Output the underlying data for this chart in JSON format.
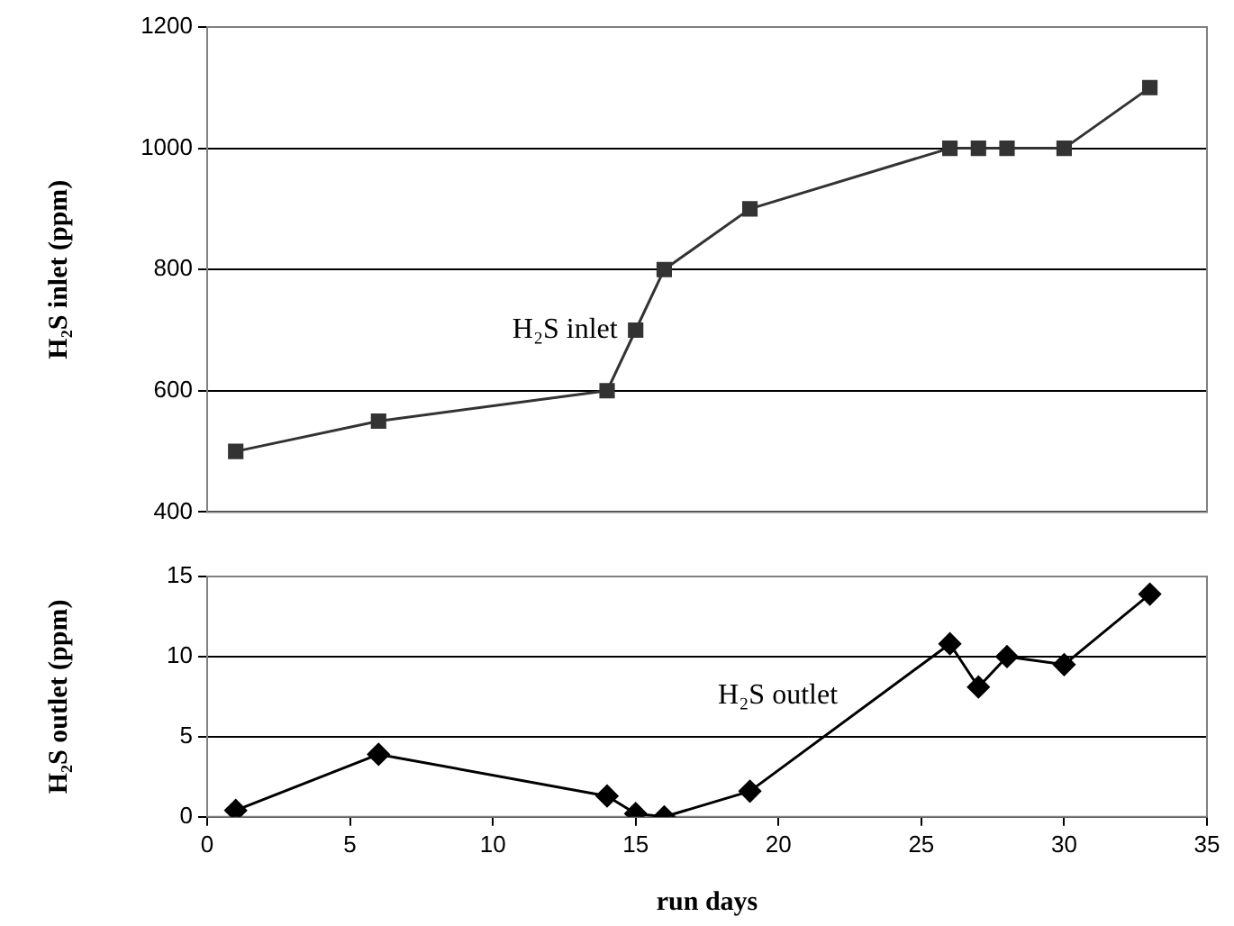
{
  "chart_data": [
    {
      "type": "line",
      "ylabel": "H₂S inlet (ppm)",
      "x": [
        1,
        6,
        14,
        15,
        16,
        19,
        26,
        27,
        28,
        30,
        33
      ],
      "xlim": [
        0,
        35
      ],
      "ylim": [
        400,
        1200
      ],
      "yticks": [
        400,
        600,
        800,
        1000,
        1200
      ],
      "tick_labels": "y",
      "grid": "y",
      "legend": false,
      "marker": "square",
      "line_style": "solid",
      "series": [
        {
          "name": "H₂S inlet",
          "color": "#333333",
          "values": [
            500,
            550,
            600,
            700,
            800,
            900,
            1000,
            1000,
            1000,
            1000,
            1100
          ]
        }
      ]
    },
    {
      "type": "line",
      "xlabel": "run days",
      "ylabel": "H₂S outlet (ppm)",
      "x": [
        1,
        6,
        14,
        15,
        16,
        19,
        26,
        27,
        28,
        30,
        33
      ],
      "xlim": [
        0,
        35
      ],
      "xticks": [
        0,
        5,
        10,
        15,
        20,
        25,
        30,
        35
      ],
      "ylim": [
        0,
        15
      ],
      "yticks": [
        0,
        5,
        10,
        15
      ],
      "grid": "y",
      "legend": false,
      "marker": "diamond",
      "line_style": "solid",
      "series": [
        {
          "name": "H₂S outlet",
          "color": "#000000",
          "values": [
            0.4,
            3.9,
            1.3,
            0.2,
            0,
            1.6,
            10.8,
            8.1,
            10,
            9.5,
            13.9
          ]
        }
      ]
    }
  ]
}
